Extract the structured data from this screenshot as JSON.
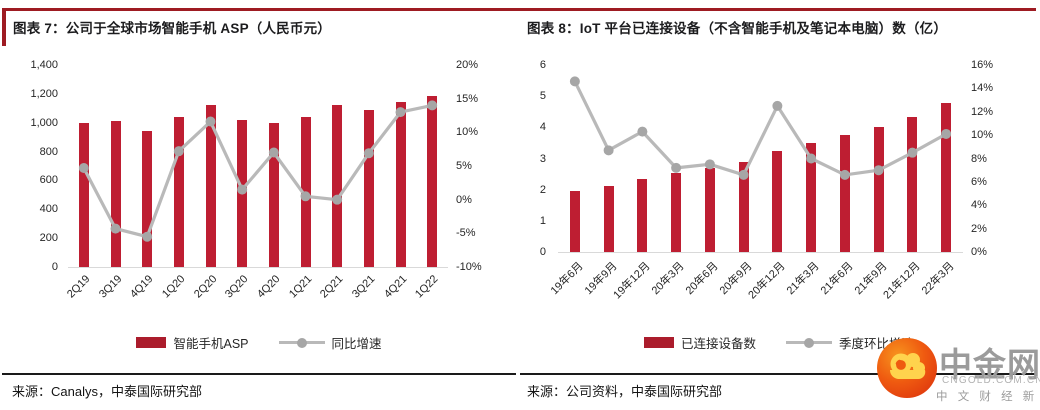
{
  "colors": {
    "bar": "#be1e32",
    "legend_swatch": "#ab1c2c",
    "line": "#b9b9b9",
    "marker": "#a6a6a6",
    "accent_red": "#9e1b22",
    "axis_text": "#262626",
    "baseline": "#d9d9d9",
    "logo_orange": "#e84210",
    "logo_gold": "#ffd34d",
    "logo_gray": "#9b9b9b"
  },
  "chart_data": [
    {
      "type": "bar+line",
      "title": "图表 7：公司于全球市场智能手机 ASP（人民币元）",
      "source": "来源：Canalys，中泰国际研究部",
      "categories": [
        "2Q19",
        "3Q19",
        "4Q19",
        "1Q20",
        "2Q20",
        "3Q20",
        "4Q20",
        "1Q21",
        "2Q21",
        "3Q21",
        "4Q21",
        "1Q22"
      ],
      "series": [
        {
          "name": "智能手机ASP",
          "type": "bar",
          "axis": "left",
          "values": [
            1000,
            1010,
            940,
            1040,
            1120,
            1020,
            1000,
            1040,
            1120,
            1090,
            1145,
            1185
          ]
        },
        {
          "name": "同比增速",
          "type": "line",
          "axis": "right",
          "unit": "%",
          "values": [
            4.7,
            -4.3,
            -5.5,
            7.2,
            11.6,
            1.5,
            7.0,
            0.5,
            0.0,
            6.9,
            13.0,
            14.0
          ]
        }
      ],
      "left_axis": {
        "min": 0,
        "max": 1400,
        "ticks": [
          "1,400",
          "1,200",
          "1,000",
          "800",
          "600",
          "400",
          "200",
          "0"
        ]
      },
      "right_axis": {
        "min": -10,
        "max": 20,
        "ticks": [
          "20%",
          "15%",
          "10%",
          "5%",
          "0%",
          "-5%",
          "-10%"
        ]
      },
      "grid": false,
      "legend_position": "bottom"
    },
    {
      "type": "bar+line",
      "title": "图表 8：IoT 平台已连接设备（不含智能手机及笔记本电脑）数（亿）",
      "source": "来源：公司资料，中泰国际研究部",
      "categories": [
        "19年6月",
        "19年9月",
        "19年12月",
        "20年3月",
        "20年6月",
        "20年9月",
        "20年12月",
        "21年3月",
        "21年6月",
        "21年9月",
        "21年12月",
        "22年3月"
      ],
      "series": [
        {
          "name": "已连接设备数",
          "type": "bar",
          "axis": "left",
          "values": [
            1.96,
            2.13,
            2.35,
            2.52,
            2.71,
            2.89,
            3.25,
            3.51,
            3.74,
            4.0,
            4.34,
            4.78
          ]
        },
        {
          "name": "季度环比增速",
          "type": "line",
          "axis": "right",
          "unit": "%",
          "values": [
            14.6,
            8.7,
            10.3,
            7.2,
            7.5,
            6.6,
            12.5,
            8.0,
            6.6,
            7.0,
            8.5,
            10.1
          ]
        }
      ],
      "left_axis": {
        "min": 0,
        "max": 6,
        "ticks": [
          "6",
          "5",
          "4",
          "3",
          "2",
          "1",
          "0"
        ]
      },
      "right_axis": {
        "min": 0,
        "max": 16,
        "ticks": [
          "16%",
          "14%",
          "12%",
          "10%",
          "8%",
          "6%",
          "4%",
          "2%",
          "0%"
        ]
      },
      "grid": false,
      "legend_position": "bottom"
    }
  ],
  "logo": {
    "brand": "中金网",
    "domain": "CNGOLD.COM.CN",
    "tagline": "中 文 财 经 新 媒 体"
  }
}
